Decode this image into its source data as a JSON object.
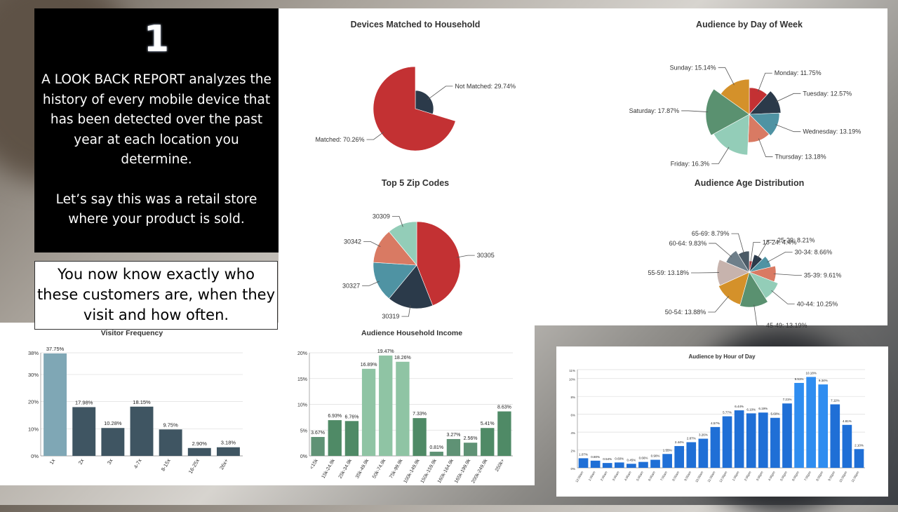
{
  "intro": {
    "number": "1",
    "paragraph1": "A LOOK BACK REPORT analyzes the history of every mobile device that has been detected over the past year at each location you determine.",
    "paragraph2": "Let’s say this was a retail store where your product is sold."
  },
  "callout": {
    "text": "You now know exactly who these customers are, when they visit and how often."
  },
  "colors": {
    "red": "#c33133",
    "navy": "#2b3a4a",
    "teal": "#4f93a3",
    "salmon": "#d97a63",
    "mint": "#93cdb8",
    "green": "#5a9170",
    "orange": "#d4912a",
    "slate_bar": "#3f5562",
    "blue_bar": "#1f6fd6"
  },
  "chart_data": [
    {
      "id": "devices",
      "type": "pie",
      "title": "Devices Matched to Household",
      "labels": [
        "Not Matched: 29.74%",
        "Matched: 70.26%"
      ],
      "categories": [
        "Not Matched",
        "Matched"
      ],
      "values": [
        29.74,
        70.26
      ]
    },
    {
      "id": "day",
      "type": "pie",
      "title": "Audience by Day of Week",
      "labels": [
        "Monday: 11.75%",
        "Tuesday: 12.57%",
        "Wednesday: 13.19%",
        "Thursday: 13.18%",
        "Friday: 16.3%",
        "Saturday: 17.87%",
        "Sunday: 15.14%"
      ],
      "categories": [
        "Monday",
        "Tuesday",
        "Wednesday",
        "Thursday",
        "Friday",
        "Saturday",
        "Sunday"
      ],
      "values": [
        11.75,
        12.57,
        13.19,
        13.18,
        16.3,
        17.87,
        15.14
      ]
    },
    {
      "id": "zip",
      "type": "pie",
      "title": "Top 5 Zip Codes",
      "labels": [
        "30305",
        "30319",
        "30327",
        "30342",
        "30309"
      ],
      "categories": [
        "30305",
        "30319",
        "30327",
        "30342",
        "30309"
      ],
      "values": [
        44,
        17,
        15,
        13,
        11
      ]
    },
    {
      "id": "age",
      "type": "pie",
      "title": "Audience Age Distribution",
      "labels": [
        "18-24: 4.4%",
        "25-29: 8.21%",
        "30-34: 8.66%",
        "35-39: 9.61%",
        "40-44: 10.25%",
        "45-49: 13.19%",
        "50-54: 13.88%",
        "55-59: 13.18%",
        "60-64: 9.83%",
        "65-69: 8.79%"
      ],
      "categories": [
        "18-24",
        "25-29",
        "30-34",
        "35-39",
        "40-44",
        "45-49",
        "50-54",
        "55-59",
        "60-64",
        "65-69"
      ],
      "values": [
        4.4,
        8.21,
        8.66,
        9.61,
        10.25,
        13.19,
        13.88,
        13.18,
        9.83,
        8.79
      ]
    },
    {
      "id": "freq",
      "type": "bar",
      "title": "Visitor Frequency",
      "categories": [
        "1x",
        "2x",
        "3x",
        "4-7x",
        "8-15x",
        "16-25x",
        "26x+"
      ],
      "values": [
        37.75,
        17.98,
        10.28,
        18.15,
        9.75,
        2.9,
        3.18
      ],
      "labels": [
        "37.75%",
        "17.98%",
        "10.28%",
        "18.15%",
        "9.75%",
        "2.90%",
        "3.18%"
      ],
      "yticks": [
        "0%",
        "10%",
        "20%",
        "30%",
        "38%"
      ],
      "ylim": [
        0,
        38
      ]
    },
    {
      "id": "income",
      "type": "bar",
      "title": "Audience Household Income",
      "categories": [
        "<15k",
        "15k-24.9k",
        "25k-34.9k",
        "35k-49.9k",
        "50k-74.9k",
        "75k-99.9k",
        "100k-149.9k",
        "150k-159.9k",
        "160k-164.9k",
        "165k-199.9k",
        "200k-249.9k",
        "250k+"
      ],
      "values": [
        3.67,
        6.93,
        6.76,
        16.89,
        19.47,
        18.26,
        7.33,
        0.81,
        3.27,
        2.56,
        5.41,
        8.63
      ],
      "labels": [
        "3.67%",
        "6.93%",
        "6.76%",
        "16.89%",
        "19.47%",
        "18.26%",
        "7.33%",
        "0.81%",
        "3.27%",
        "2.56%",
        "5.41%",
        "8.63%"
      ],
      "yticks": [
        "0%",
        "5%",
        "10%",
        "15%",
        "20%"
      ],
      "ylim": [
        0,
        20
      ]
    },
    {
      "id": "hour",
      "type": "bar",
      "title": "Audience by Hour of Day",
      "categories": [
        "12:00am",
        "1:00am",
        "2:00am",
        "3:00am",
        "4:00am",
        "5:00am",
        "6:00am",
        "7:00am",
        "8:00am",
        "9:00am",
        "10:00am",
        "11:00am",
        "12:00pm",
        "1:00pm",
        "2:00pm",
        "3:00pm",
        "4:00pm",
        "5:00pm",
        "6:00pm",
        "7:00pm",
        "8:00pm",
        "9:00pm",
        "10:00pm",
        "11:00pm"
      ],
      "values": [
        1.07,
        0.8,
        0.54,
        0.6,
        0.45,
        0.66,
        0.9,
        1.55,
        2.44,
        2.87,
        3.26,
        4.57,
        5.77,
        6.44,
        6.1,
        6.19,
        5.6,
        7.21,
        9.51,
        10.18,
        9.34,
        7.11,
        4.81,
        2.1
      ],
      "labels": [
        "1.07%",
        "0.80%",
        "0.54%",
        "0.60%",
        "0.45%",
        "0.66%",
        "0.90%",
        "1.55%",
        "2.44%",
        "2.87%",
        "3.26%",
        "4.57%",
        "5.77%",
        "6.44%",
        "6.10%",
        "6.19%",
        "5.60%",
        "7.21%",
        "9.51%",
        "10.18%",
        "9.34%",
        "7.11%",
        "4.81%",
        "2.10%"
      ],
      "yticks": [
        "0%",
        "2%",
        "4%",
        "6%",
        "8%",
        "10%",
        "11%"
      ],
      "ylim": [
        0,
        11
      ]
    }
  ]
}
